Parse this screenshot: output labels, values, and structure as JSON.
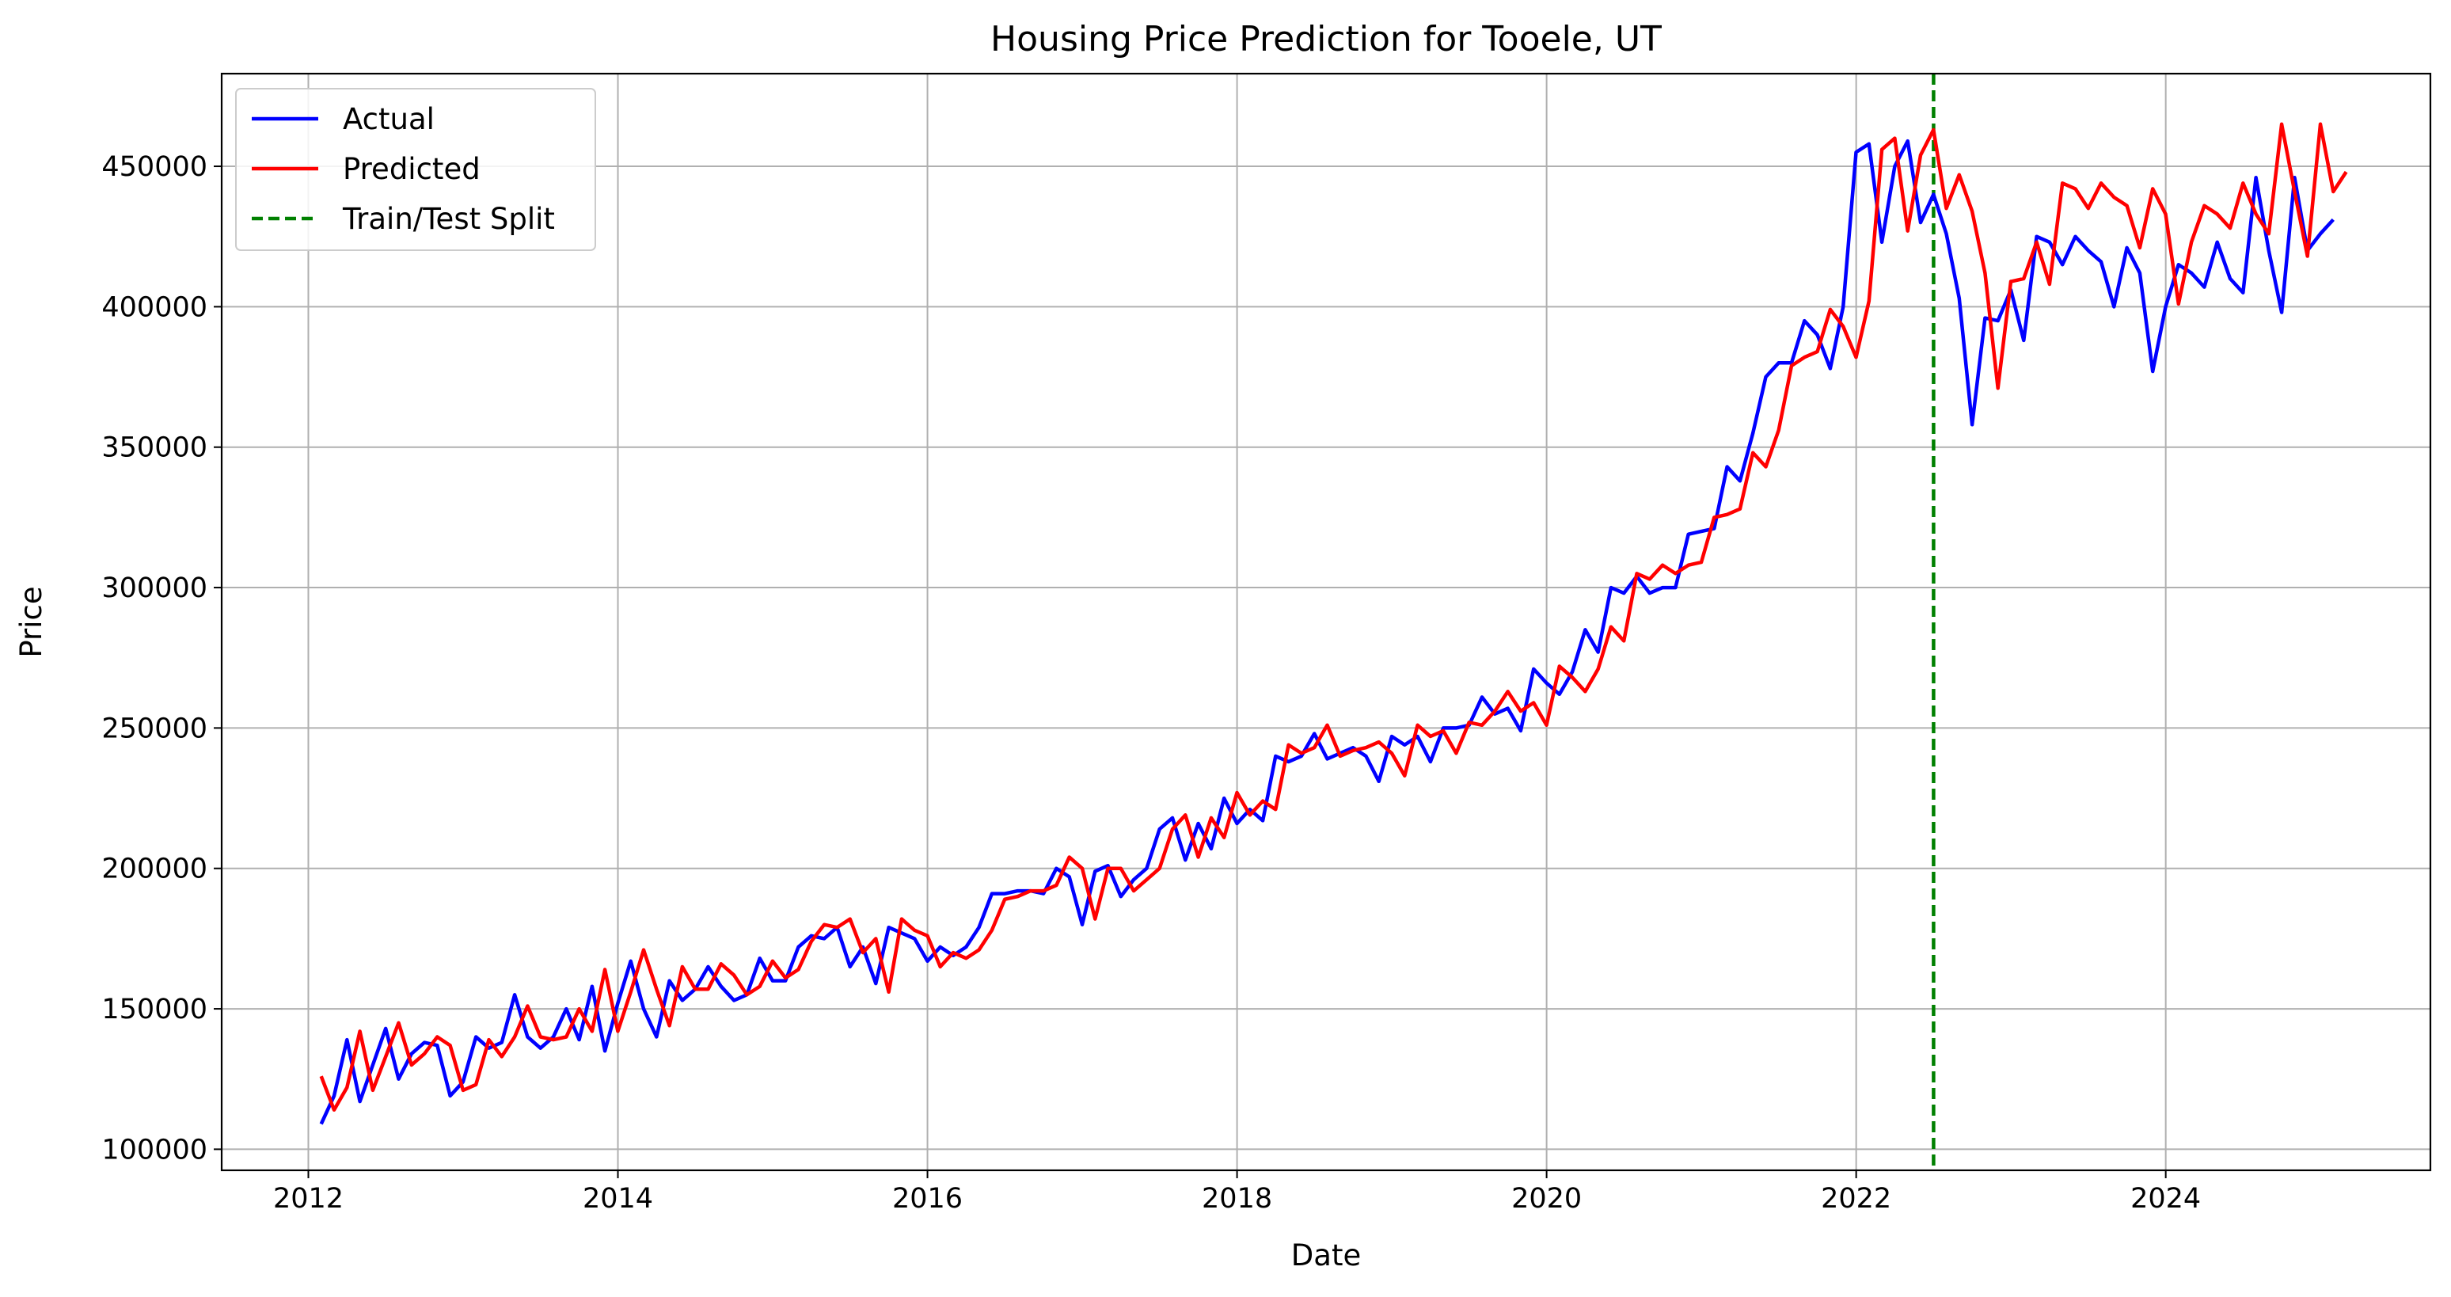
{
  "chart_data": {
    "type": "line",
    "title": "Housing Price Prediction for Tooele, UT",
    "xlabel": "Date",
    "ylabel": "Price",
    "x_ticks": [
      2012,
      2014,
      2016,
      2018,
      2020,
      2022,
      2024
    ],
    "x_tick_labels": [
      "2012",
      "2014",
      "2016",
      "2018",
      "2020",
      "2022",
      "2024"
    ],
    "y_ticks": [
      100000,
      150000,
      200000,
      250000,
      300000,
      350000,
      400000,
      450000
    ],
    "y_tick_labels": [
      "100000",
      "150000",
      "200000",
      "250000",
      "300000",
      "350000",
      "400000",
      "450000"
    ],
    "xlim": [
      2011.44,
      2025.71
    ],
    "ylim": [
      92500,
      483000
    ],
    "grid": true,
    "legend_position": "upper left",
    "split_line": {
      "label": "Train/Test Split",
      "x": 2022.5,
      "color": "#008000"
    },
    "series": [
      {
        "name": "Actual",
        "color": "#0000ff",
        "x_start": 2012.083,
        "step": 0.08333,
        "values": [
          109000,
          119000,
          139000,
          117000,
          130000,
          143000,
          125000,
          134000,
          138000,
          137000,
          119000,
          124000,
          140000,
          136000,
          138000,
          155000,
          140000,
          136000,
          140000,
          150000,
          139000,
          158000,
          135000,
          152000,
          167000,
          150000,
          140000,
          160000,
          153000,
          157000,
          165000,
          158000,
          153000,
          155000,
          168000,
          160000,
          160000,
          172000,
          176000,
          175000,
          179000,
          165000,
          172000,
          159000,
          179000,
          177000,
          175000,
          167000,
          172000,
          169000,
          172000,
          179000,
          191000,
          191000,
          192000,
          192000,
          191000,
          200000,
          197000,
          180000,
          199000,
          201000,
          190000,
          196000,
          200000,
          214000,
          218000,
          203000,
          216000,
          207000,
          225000,
          216000,
          221000,
          217000,
          240000,
          238000,
          240000,
          248000,
          239000,
          241000,
          243000,
          240000,
          231000,
          247000,
          244000,
          247000,
          238000,
          250000,
          250000,
          251000,
          261000,
          255000,
          257000,
          249000,
          271000,
          266000,
          262000,
          270000,
          285000,
          277000,
          300000,
          298000,
          304000,
          298000,
          300000,
          300000,
          319000,
          320000,
          321000,
          343000,
          338000,
          355000,
          375000,
          380000,
          380000,
          395000,
          390000,
          378000,
          400000,
          455000,
          458000,
          423000,
          450000,
          459000,
          430000,
          440000,
          426000,
          403000,
          358000,
          396000,
          395000,
          406000,
          388000,
          425000,
          423000,
          415000,
          425000,
          420000,
          416000,
          400000,
          421000,
          412000,
          377000,
          400000,
          415000,
          412000,
          407000,
          423000,
          410000,
          405000,
          446000,
          420000,
          398000,
          446000,
          420000,
          426000,
          431000
        ]
      },
      {
        "name": "Predicted",
        "color": "#ff0000",
        "x_start": 2012.083,
        "step": 0.08333,
        "values": [
          126000,
          114000,
          122000,
          142000,
          121000,
          133000,
          145000,
          130000,
          134000,
          140000,
          137000,
          121000,
          123000,
          139000,
          133000,
          140000,
          151000,
          140000,
          139000,
          140000,
          150000,
          142000,
          164000,
          142000,
          156000,
          171000,
          157000,
          144000,
          165000,
          157000,
          157000,
          166000,
          162000,
          155000,
          158000,
          167000,
          161000,
          164000,
          174000,
          180000,
          179000,
          182000,
          170000,
          175000,
          156000,
          182000,
          178000,
          176000,
          165000,
          170000,
          168000,
          171000,
          178000,
          189000,
          190000,
          192000,
          192000,
          194000,
          204000,
          200000,
          182000,
          200000,
          200000,
          192000,
          196000,
          200000,
          214000,
          219000,
          204000,
          218000,
          211000,
          227000,
          219000,
          224000,
          221000,
          244000,
          241000,
          243000,
          251000,
          240000,
          242000,
          243000,
          245000,
          241000,
          233000,
          251000,
          247000,
          249000,
          241000,
          252000,
          251000,
          256000,
          263000,
          256000,
          259000,
          251000,
          272000,
          268000,
          263000,
          271000,
          286000,
          281000,
          305000,
          303000,
          308000,
          305000,
          308000,
          309000,
          325000,
          326000,
          328000,
          348000,
          343000,
          356000,
          379000,
          382000,
          384000,
          399000,
          393000,
          382000,
          402000,
          456000,
          460000,
          427000,
          454000,
          463000,
          435000,
          447000,
          434000,
          412000,
          371000,
          409000,
          410000,
          423000,
          408000,
          444000,
          442000,
          435000,
          444000,
          439000,
          436000,
          421000,
          442000,
          433000,
          401000,
          423000,
          436000,
          433000,
          428000,
          444000,
          433000,
          426000,
          465000,
          441000,
          418000,
          465000,
          441000,
          448000
        ]
      }
    ]
  }
}
